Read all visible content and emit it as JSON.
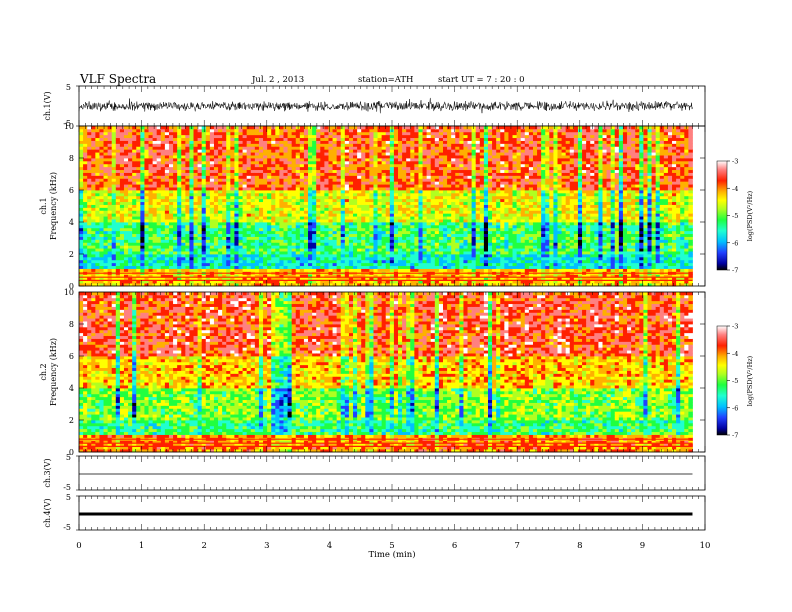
{
  "header": {
    "title": "VLF  Spectra",
    "date": "Jul.  2  , 2013",
    "station": "station=ATH",
    "start": "start  UT  =    7  : 20 : 0"
  },
  "chart_data": [
    {
      "type": "line",
      "panel": "ch1-waveform",
      "ylabel": "ch.1(V)",
      "ylim": [
        -5,
        5
      ],
      "yticks": [
        "5",
        "-5"
      ],
      "x_range_min": [
        0,
        9.8
      ],
      "noise_band_v": [
        -1.3,
        1.5
      ]
    },
    {
      "type": "heatmap",
      "panel": "ch1-spectrogram",
      "ylabel": "ch.1\nFrequency  (kHz)",
      "ylabel_lines": [
        "ch.1",
        "Frequency  (kHz)"
      ],
      "ylim": [
        0,
        10
      ],
      "yticks": [
        "0",
        "2",
        "4",
        "6",
        "8",
        "10"
      ],
      "colorbar": {
        "label": "log(PSD(V²/Hz)",
        "range": [
          -7,
          -3
        ],
        "ticks": [
          "-3",
          "-4",
          "-5",
          "-6",
          "-7"
        ]
      },
      "dominant_log_psd_by_band_khz": [
        {
          "band": [
            0,
            1
          ],
          "log_psd": -4.2
        },
        {
          "band": [
            1,
            2
          ],
          "log_psd": -5.6
        },
        {
          "band": [
            2,
            4
          ],
          "log_psd": -5.3
        },
        {
          "band": [
            4,
            6
          ],
          "log_psd": -4.6
        },
        {
          "band": [
            6,
            10
          ],
          "log_psd": -3.8
        }
      ]
    },
    {
      "type": "heatmap",
      "panel": "ch2-spectrogram",
      "ylabel": "ch.2\nFrequency  (kHz)",
      "ylabel_lines": [
        "ch.2",
        "Frequency  (kHz)"
      ],
      "ylim": [
        0,
        10
      ],
      "yticks": [
        "0",
        "2",
        "4",
        "6",
        "8",
        "10"
      ],
      "colorbar": {
        "label": "log(PSD(V²/Hz)",
        "range": [
          -7,
          -3
        ],
        "ticks": [
          "-3",
          "-4",
          "-5",
          "-6",
          "-7"
        ]
      },
      "dominant_log_psd_by_band_khz": [
        {
          "band": [
            0,
            1
          ],
          "log_psd": -4.0
        },
        {
          "band": [
            1,
            2
          ],
          "log_psd": -5.3
        },
        {
          "band": [
            2,
            4
          ],
          "log_psd": -5.0
        },
        {
          "band": [
            4,
            6
          ],
          "log_psd": -4.3
        },
        {
          "band": [
            6,
            10
          ],
          "log_psd": -3.7
        }
      ]
    },
    {
      "type": "line",
      "panel": "ch3-waveform",
      "ylabel": "ch.3(V)",
      "ylim": [
        -5,
        5
      ],
      "yticks": [
        "5",
        "-5"
      ],
      "level_v": -0.3
    },
    {
      "type": "line",
      "panel": "ch4-waveform",
      "ylabel": "ch.4(V)",
      "ylim": [
        -5,
        5
      ],
      "yticks": [
        "5",
        "-5"
      ],
      "level_v": -0.3
    }
  ],
  "xaxis": {
    "label": "Time  (min)",
    "range": [
      0,
      10
    ],
    "ticks": [
      "0",
      "1",
      "2",
      "3",
      "4",
      "5",
      "6",
      "7",
      "8",
      "9",
      "10"
    ]
  },
  "colormap": [
    "#ffffff",
    "#ff8080",
    "#ff2000",
    "#ffb000",
    "#ffff00",
    "#b0ff20",
    "#20ff40",
    "#20ffd0",
    "#00c0ff",
    "#2040ff",
    "#0000a0",
    "#000000"
  ]
}
